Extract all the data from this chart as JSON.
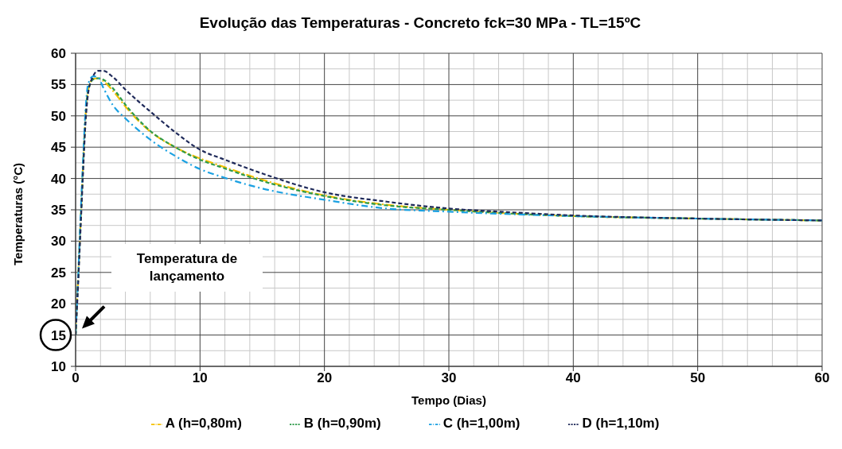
{
  "chart_data": {
    "type": "line",
    "title": "Evolução das Temperaturas - Concreto fck=30 MPa - TL=15ºC",
    "xlabel": "Tempo (Dias)",
    "ylabel": "Temperaturas (°C)",
    "x": [
      0,
      0.2,
      0.4,
      0.6,
      0.8,
      1,
      1.4,
      1.8,
      2.2,
      3,
      4,
      5,
      6,
      8,
      10,
      12,
      15,
      20,
      25,
      30,
      35,
      40,
      50,
      60
    ],
    "series": [
      {
        "name": "A (h=0,80m)",
        "color": "#f5c000",
        "values": [
          15,
          24,
          33,
          42,
          50,
          54,
          55.9,
          56,
          55.6,
          54,
          51.5,
          49.3,
          47.5,
          45,
          43.2,
          41.8,
          39.8,
          37.3,
          35.8,
          35.0,
          34.4,
          34.0,
          33.6,
          33.3
        ]
      },
      {
        "name": "B (h=0,90m)",
        "color": "#2e9a4a",
        "values": [
          15,
          24,
          33,
          42,
          50,
          54,
          55.8,
          56,
          55.8,
          54.4,
          51.8,
          49.5,
          47.6,
          45,
          43.0,
          41.6,
          39.6,
          37.2,
          35.7,
          35.0,
          34.4,
          34.0,
          33.6,
          33.3
        ]
      },
      {
        "name": "C (h=1,00m)",
        "color": "#1ba1e2",
        "values": [
          15,
          24,
          34,
          43,
          51,
          55,
          56.3,
          56.2,
          54.6,
          51.7,
          49.6,
          47.8,
          46.2,
          43.6,
          41.5,
          40.1,
          38.4,
          36.6,
          35.2,
          34.7,
          34.3,
          34.0,
          33.6,
          33.3
        ]
      },
      {
        "name": "D (h=1,10m)",
        "color": "#1f2a5a",
        "values": [
          15,
          23,
          32,
          41,
          49,
          53.5,
          56.3,
          57.2,
          57.2,
          56.2,
          54.2,
          52.4,
          50.7,
          47.4,
          44.6,
          43.0,
          40.8,
          37.8,
          36.3,
          35.2,
          34.6,
          34.1,
          33.6,
          33.3
        ]
      }
    ],
    "xlim": [
      0,
      60
    ],
    "xticks": [
      0,
      10,
      20,
      30,
      40,
      50,
      60
    ],
    "ylim": [
      10,
      60
    ],
    "yticks": [
      10,
      15,
      20,
      25,
      30,
      35,
      40,
      45,
      50,
      55,
      60
    ],
    "grid": true,
    "legend": "bottom",
    "marker": "none",
    "line_style": "dashed",
    "annotations": [
      "Temperatura de lançamento"
    ]
  }
}
